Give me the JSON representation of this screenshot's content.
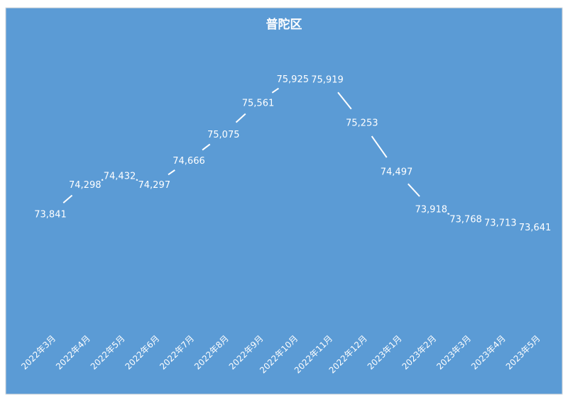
{
  "colors": {
    "plot_background": "#5b9bd5",
    "frame_border": "#d9d9d9",
    "line": "#ffffff",
    "text": "#ffffff"
  },
  "chart_data": {
    "type": "line",
    "title": "普陀区",
    "xlabel": "",
    "ylabel": "",
    "categories": [
      "2022年3月",
      "2022年4月",
      "2022年5月",
      "2022年6月",
      "2022年7月",
      "2022年8月",
      "2022年9月",
      "2022年10月",
      "2022年11月",
      "2022年12月",
      "2023年1月",
      "2023年2月",
      "2023年3月",
      "2023年4月",
      "2023年5月"
    ],
    "series": [
      {
        "values": [
          73841,
          74298,
          74432,
          74297,
          74666,
          75075,
          75561,
          75925,
          75919,
          75253,
          74497,
          73918,
          73768,
          73713,
          73641
        ],
        "labels": [
          "73,841",
          "74,298",
          "74,432",
          "74,297",
          "74,666",
          "75,075",
          "75,561",
          "75,925",
          "75,919",
          "75,253",
          "74,497",
          "73,918",
          "73,768",
          "73,713",
          "73,641"
        ]
      }
    ],
    "drop_lines": true,
    "grid": false,
    "legend": "none"
  }
}
